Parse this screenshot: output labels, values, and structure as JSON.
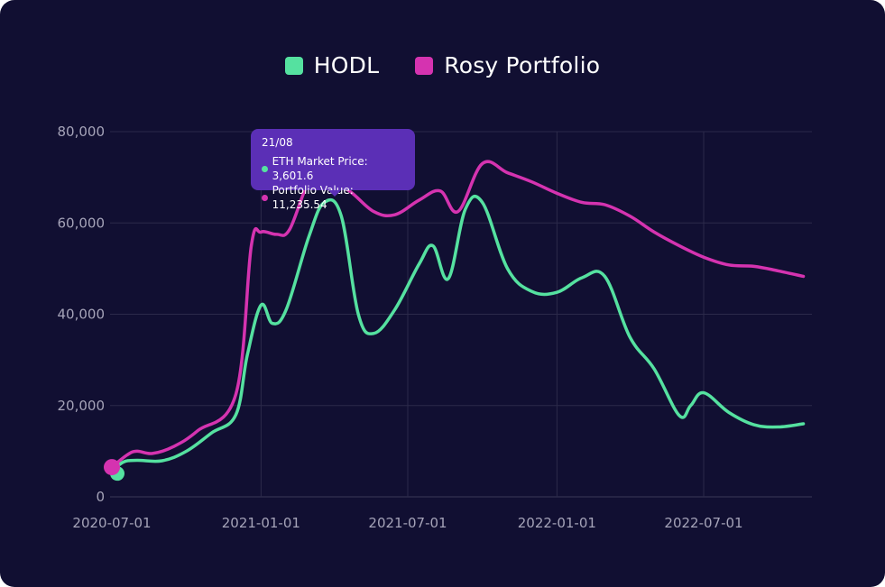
{
  "chart_data": {
    "type": "line",
    "series": [
      {
        "name": "HODL",
        "color": "#55e1a0",
        "points": [
          [
            "2020-07-01",
            5500
          ],
          [
            "2020-07-15",
            7600
          ],
          [
            "2020-08-01",
            8000
          ],
          [
            "2020-09-01",
            7900
          ],
          [
            "2020-10-01",
            10000
          ],
          [
            "2020-11-01",
            14000
          ],
          [
            "2020-12-01",
            18000
          ],
          [
            "2020-12-15",
            31000
          ],
          [
            "2021-01-01",
            42000
          ],
          [
            "2021-01-15",
            38000
          ],
          [
            "2021-02-01",
            41000
          ],
          [
            "2021-03-01",
            57000
          ],
          [
            "2021-03-20",
            64500
          ],
          [
            "2021-04-10",
            61500
          ],
          [
            "2021-05-01",
            40000
          ],
          [
            "2021-05-20",
            35800
          ],
          [
            "2021-06-15",
            41000
          ],
          [
            "2021-07-15",
            51000
          ],
          [
            "2021-08-01",
            55000
          ],
          [
            "2021-08-20",
            47800
          ],
          [
            "2021-09-10",
            63000
          ],
          [
            "2021-10-01",
            64500
          ],
          [
            "2021-11-01",
            50000
          ],
          [
            "2021-12-01",
            45000
          ],
          [
            "2022-01-01",
            44800
          ],
          [
            "2022-02-01",
            48000
          ],
          [
            "2022-03-01",
            48300
          ],
          [
            "2022-04-01",
            35000
          ],
          [
            "2022-05-01",
            28000
          ],
          [
            "2022-06-01",
            17800
          ],
          [
            "2022-06-15",
            20000
          ],
          [
            "2022-07-01",
            22800
          ],
          [
            "2022-08-01",
            18500
          ],
          [
            "2022-09-01",
            15800
          ],
          [
            "2022-10-01",
            15300
          ],
          [
            "2022-11-01",
            16000
          ]
        ]
      },
      {
        "name": "Rosy Portfolio",
        "color": "#d533b0",
        "points": [
          [
            "2020-07-01",
            6500
          ],
          [
            "2020-07-20",
            9200
          ],
          [
            "2020-08-01",
            10000
          ],
          [
            "2020-08-20",
            9500
          ],
          [
            "2020-09-15",
            11000
          ],
          [
            "2020-10-15",
            14500
          ],
          [
            "2020-12-01",
            22500
          ],
          [
            "2020-12-20",
            55000
          ],
          [
            "2021-01-01",
            58000
          ],
          [
            "2021-01-20",
            57500
          ],
          [
            "2021-02-05",
            58500
          ],
          [
            "2021-03-01",
            69000
          ],
          [
            "2021-03-20",
            70000
          ],
          [
            "2021-04-20",
            67000
          ],
          [
            "2021-05-20",
            62500
          ],
          [
            "2021-06-15",
            61800
          ],
          [
            "2021-07-15",
            65000
          ],
          [
            "2021-08-10",
            67000
          ],
          [
            "2021-09-01",
            62500
          ],
          [
            "2021-10-01",
            73000
          ],
          [
            "2021-11-01",
            71000
          ],
          [
            "2021-12-01",
            69000
          ],
          [
            "2022-01-01",
            66500
          ],
          [
            "2022-02-01",
            64500
          ],
          [
            "2022-03-01",
            64000
          ],
          [
            "2022-04-01",
            61500
          ],
          [
            "2022-05-01",
            58000
          ],
          [
            "2022-06-01",
            55000
          ],
          [
            "2022-07-01",
            52500
          ],
          [
            "2022-08-01",
            50800
          ],
          [
            "2022-09-01",
            50500
          ],
          [
            "2022-10-01",
            49500
          ],
          [
            "2022-11-01",
            48300
          ]
        ]
      }
    ],
    "x_ticks": [
      "2020-07-01",
      "2021-01-01",
      "2021-07-01",
      "2022-01-01",
      "2022-07-01"
    ],
    "y_ticks": [
      "0",
      "20,000",
      "40,000",
      "60,000",
      "80,000"
    ],
    "xlim": [
      "2020-07-01",
      "2022-11-01"
    ],
    "ylim": [
      0,
      80000
    ],
    "grid": true,
    "legend_position": "top-center",
    "tooltip": {
      "title": "21/08",
      "rows": [
        {
          "label": "ETH Market Price: 3,601.6",
          "color": "#55e1a0"
        },
        {
          "label": "Portfolio Value: 11,235.54",
          "color": "#d533b0"
        }
      ]
    }
  },
  "colors": {
    "background": "#110f32",
    "grid": "#2c2a4a",
    "tooltip": "#5b2fb6"
  }
}
